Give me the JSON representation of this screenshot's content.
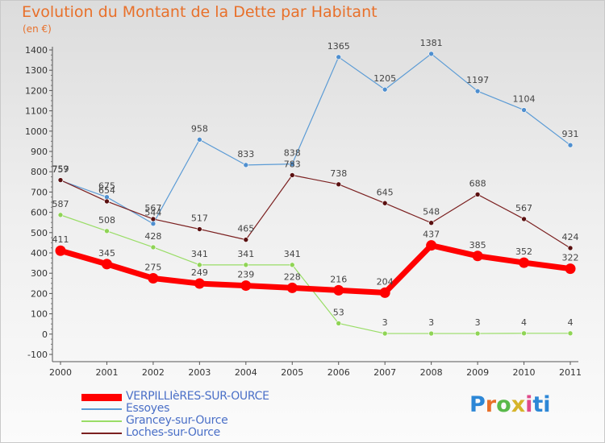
{
  "title": "Evolution du Montant de la Dette par Habitant",
  "unit": "(en €)",
  "logo": [
    "P",
    "r",
    "o",
    "x",
    "i",
    "t",
    "i"
  ],
  "chart_data": {
    "type": "line",
    "x": [
      "2000",
      "2001",
      "2002",
      "2003",
      "2004",
      "2005",
      "2006",
      "2007",
      "2008",
      "2009",
      "2010",
      "2011"
    ],
    "ylim": [
      -100,
      1400
    ],
    "yticks": [
      -100,
      0,
      100,
      200,
      300,
      400,
      500,
      600,
      700,
      800,
      900,
      1000,
      1100,
      1200,
      1300,
      1400
    ],
    "grid": false,
    "series": [
      {
        "name": "VERPILLIèRES-SUR-OURCE",
        "color": "#ff0000",
        "values": [
          411,
          345,
          275,
          249,
          239,
          228,
          216,
          204,
          437,
          385,
          352,
          322
        ]
      },
      {
        "name": "Essoyes",
        "color": "#5b9bd5",
        "values": [
          757,
          675,
          544,
          958,
          833,
          838,
          1365,
          1205,
          1381,
          1197,
          1104,
          931
        ]
      },
      {
        "name": "Grancey-sur-Ource",
        "color": "#99dd66",
        "values": [
          587,
          508,
          428,
          341,
          341,
          341,
          53,
          3,
          3,
          3,
          4,
          4
        ]
      },
      {
        "name": "Loches-sur-Ource",
        "color": "#7b2020",
        "values": [
          759,
          654,
          567,
          517,
          465,
          783,
          738,
          645,
          548,
          688,
          567,
          424
        ]
      }
    ]
  }
}
